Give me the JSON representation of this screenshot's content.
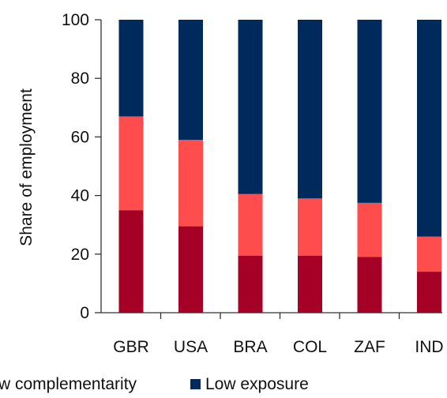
{
  "chart_data": {
    "type": "bar",
    "stacked": true,
    "categories": [
      "GBR",
      "USA",
      "BRA",
      "COL",
      "ZAF",
      "IND"
    ],
    "series": [
      {
        "name": "w complementarity",
        "color": "#a50026",
        "values": [
          35,
          29.5,
          19.5,
          19.5,
          19,
          14
        ]
      },
      {
        "name": "",
        "color": "#ff4d4d",
        "values": [
          32,
          29.5,
          21,
          19.5,
          18.5,
          12
        ]
      },
      {
        "name": "Low exposure",
        "color": "#002a5c",
        "values": [
          33,
          41,
          59.5,
          61,
          62.5,
          74
        ]
      }
    ],
    "title": "",
    "xlabel": "",
    "ylabel": "Share of employment",
    "ylim": [
      0,
      100
    ],
    "yticks": [
      0,
      20,
      40,
      60,
      80,
      100
    ],
    "grid": false,
    "legend_position": "bottom"
  }
}
